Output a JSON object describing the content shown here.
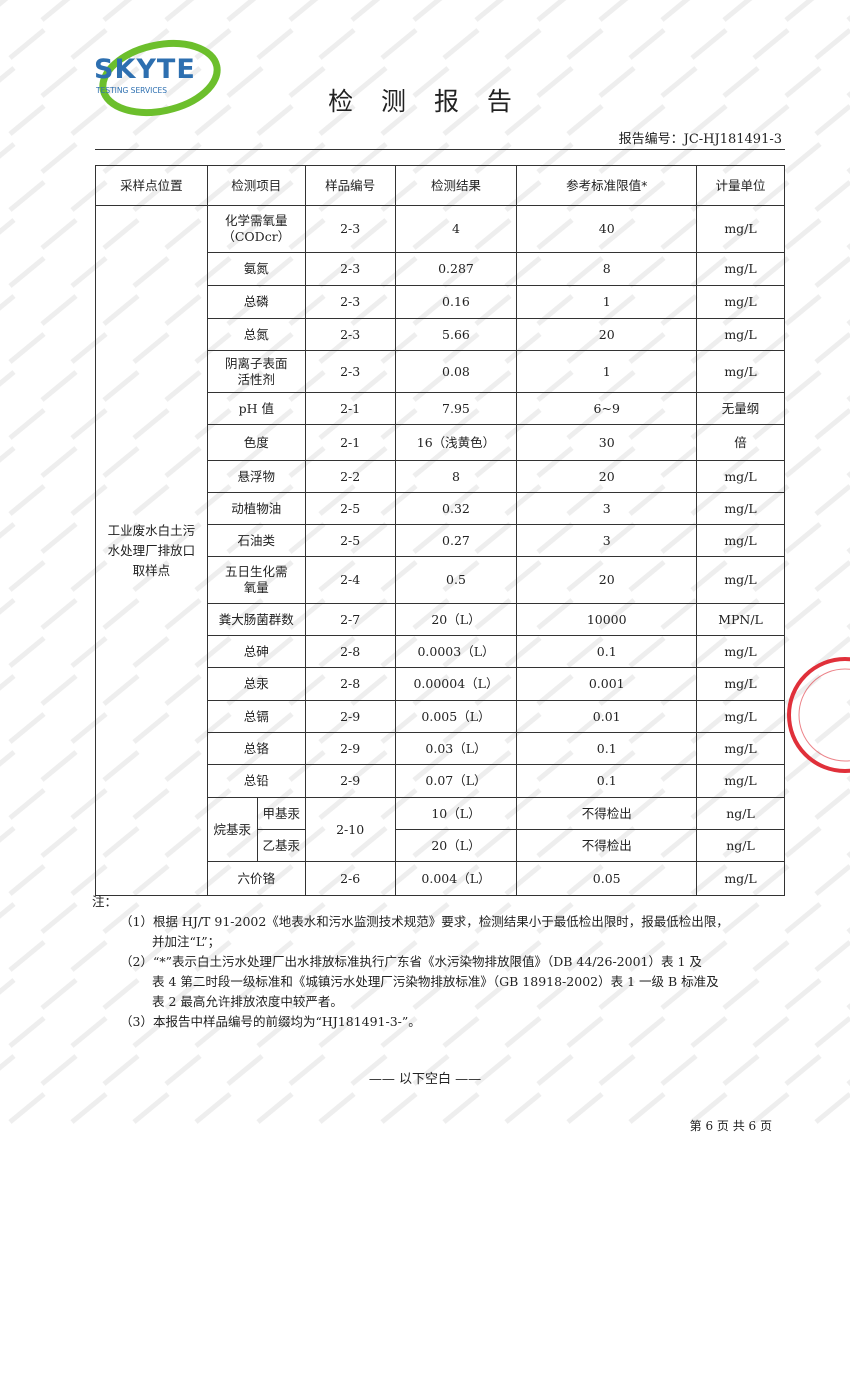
{
  "watermark": "SKYTE",
  "logo": {
    "name": "SKYTE",
    "sub": "TESTING SERVICES"
  },
  "title": "检 测 报 告",
  "report_no": "报告编号：JC-HJ181491-3",
  "headers": [
    "采样点位置",
    "检测项目",
    "样品编号",
    "检测结果",
    "参考标准限值*",
    "计量单位"
  ],
  "location": "工业废水白土污水处理厂排放口取样点",
  "rows": [
    {
      "item": "化学需氧量（CODcr）",
      "no": "2-3",
      "result": "4",
      "limit": "40",
      "unit": "mg/L"
    },
    {
      "item": "氨氮",
      "no": "2-3",
      "result": "0.287",
      "limit": "8",
      "unit": "mg/L"
    },
    {
      "item": "总磷",
      "no": "2-3",
      "result": "0.16",
      "limit": "1",
      "unit": "mg/L"
    },
    {
      "item": "总氮",
      "no": "2-3",
      "result": "5.66",
      "limit": "20",
      "unit": "mg/L"
    },
    {
      "item": "阴离子表面活性剂",
      "no": "2-3",
      "result": "0.08",
      "limit": "1",
      "unit": "mg/L"
    },
    {
      "item": "pH 值",
      "no": "2-1",
      "result": "7.95",
      "limit": "6~9",
      "unit": "无量纲"
    },
    {
      "item": "色度",
      "no": "2-1",
      "result": "16（浅黄色）",
      "limit": "30",
      "unit": "倍"
    },
    {
      "item": "悬浮物",
      "no": "2-2",
      "result": "8",
      "limit": "20",
      "unit": "mg/L"
    },
    {
      "item": "动植物油",
      "no": "2-5",
      "result": "0.32",
      "limit": "3",
      "unit": "mg/L"
    },
    {
      "item": "石油类",
      "no": "2-5",
      "result": "0.27",
      "limit": "3",
      "unit": "mg/L"
    },
    {
      "item": "五日生化需氧量",
      "no": "2-4",
      "result": "0.5",
      "limit": "20",
      "unit": "mg/L"
    },
    {
      "item": "粪大肠菌群数",
      "no": "2-7",
      "result": "20（L）",
      "limit": "10000",
      "unit": "MPN/L"
    },
    {
      "item": "总砷",
      "no": "2-8",
      "result": "0.0003（L）",
      "limit": "0.1",
      "unit": "mg/L"
    },
    {
      "item": "总汞",
      "no": "2-8",
      "result": "0.00004（L）",
      "limit": "0.001",
      "unit": "mg/L"
    },
    {
      "item": "总镉",
      "no": "2-9",
      "result": "0.005（L）",
      "limit": "0.01",
      "unit": "mg/L"
    },
    {
      "item": "总铬",
      "no": "2-9",
      "result": "0.03（L）",
      "limit": "0.1",
      "unit": "mg/L"
    },
    {
      "item": "总铅",
      "no": "2-9",
      "result": "0.07（L）",
      "limit": "0.1",
      "unit": "mg/L"
    }
  ],
  "alkyl": {
    "item": "烷基汞",
    "no": "2-10",
    "sub": [
      {
        "item": "甲基汞",
        "result": "10（L）",
        "limit": "不得检出",
        "unit": "ng/L"
      },
      {
        "item": "乙基汞",
        "result": "20（L）",
        "limit": "不得检出",
        "unit": "ng/L"
      }
    ]
  },
  "last": {
    "item": "六价铬",
    "no": "2-6",
    "result": "0.004（L）",
    "limit": "0.05",
    "unit": "mg/L"
  },
  "notes": {
    "label": "注：",
    "n1": "（1）根据 HJ/T 91-2002《地表水和污水监测技术规范》要求，检测结果小于最低检出限时，报最低检出限，",
    "n1b": "并加注“L”；",
    "n2": "（2）“*”表示白土污水处理厂出水排放标准执行广东省《水污染物排放限值》（DB 44/26-2001）表 1 及",
    "n2b": "表 4 第二时段一级标准和《城镇污水处理厂污染物排放标准》（GB 18918-2002）表 1 一级 B 标准及",
    "n2c": "表 2 最高允许排放浓度中较严者。",
    "n3": "（3）本报告中样品编号的前缀均为“HJ181491-3-”。"
  },
  "blank": "—— 以下空白 ——",
  "page": "第 6 页  共 6 页"
}
